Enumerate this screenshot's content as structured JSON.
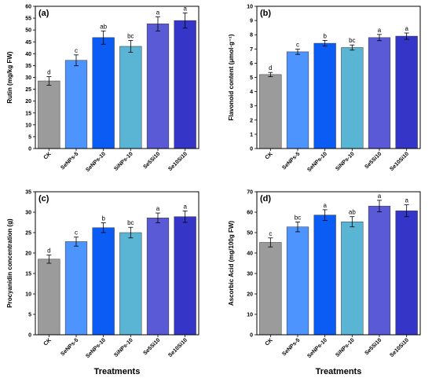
{
  "chart_data": [
    {
      "type": "bar",
      "panel_label": "(a)",
      "categories": [
        "CK",
        "SeNPs-5",
        "SeNPs-10",
        "SiNPs-10",
        "Se5Si10",
        "Se10Si10"
      ],
      "values": [
        28.5,
        37.2,
        46.8,
        43.1,
        52.6,
        54.0
      ],
      "errors": [
        1.8,
        2.3,
        2.8,
        2.5,
        3.0,
        3.2
      ],
      "significance": [
        "d",
        "c",
        "ab",
        "bc",
        "a",
        "a"
      ],
      "colors": [
        "#9b9b9b",
        "#4d94ff",
        "#0a5cf5",
        "#5ab4d4",
        "#5a5ad6",
        "#3535c8"
      ],
      "ylabel": "Rutin (mg/kg FW)",
      "xlabel": "",
      "ylim": [
        0,
        60
      ],
      "yticks": [
        "0",
        "5",
        "10",
        "15",
        "20",
        "25",
        "30",
        "35",
        "40",
        "45",
        "50",
        "55",
        "60"
      ]
    },
    {
      "type": "bar",
      "panel_label": "(b)",
      "categories": [
        "CK",
        "SeNPs-5",
        "SeNPs-10",
        "SiNPs-10",
        "Se5Si10",
        "Se10Si10"
      ],
      "values": [
        5.2,
        6.8,
        7.4,
        7.1,
        7.8,
        7.9
      ],
      "errors": [
        0.15,
        0.18,
        0.2,
        0.18,
        0.22,
        0.22
      ],
      "significance": [
        "d",
        "c",
        "b",
        "bc",
        "a",
        "a"
      ],
      "colors": [
        "#9b9b9b",
        "#4d94ff",
        "#0a5cf5",
        "#5ab4d4",
        "#5a5ad6",
        "#3535c8"
      ],
      "ylabel": "Flavonoid content (μmol·g⁻¹)",
      "xlabel": "",
      "ylim": [
        0,
        10
      ],
      "yticks": [
        "0",
        "1",
        "2",
        "3",
        "4",
        "5",
        "6",
        "7",
        "8",
        "9",
        "10"
      ]
    },
    {
      "type": "bar",
      "panel_label": "(c)",
      "categories": [
        "CK",
        "SeNPs-5",
        "SeNPs-10",
        "SiNPs-10",
        "Se5Si10",
        "Se10Si10"
      ],
      "values": [
        18.5,
        22.8,
        26.2,
        25.0,
        28.6,
        28.9
      ],
      "errors": [
        1.0,
        1.1,
        1.2,
        1.3,
        1.2,
        1.4
      ],
      "significance": [
        "d",
        "c",
        "b",
        "bc",
        "a",
        "a"
      ],
      "colors": [
        "#9b9b9b",
        "#4d94ff",
        "#0a5cf5",
        "#5ab4d4",
        "#5a5ad6",
        "#3535c8"
      ],
      "ylabel": "Procyanidin concentration (g)",
      "xlabel": "Treatments",
      "ylim": [
        0,
        35
      ],
      "yticks": [
        "0",
        "5",
        "10",
        "15",
        "20",
        "25",
        "30",
        "35"
      ]
    },
    {
      "type": "bar",
      "panel_label": "(d)",
      "categories": [
        "CK",
        "SeNPs-5",
        "SeNPs-10",
        "SiNPs-10",
        "Se5Si10",
        "Se10Si10"
      ],
      "values": [
        45.2,
        52.8,
        58.6,
        55.3,
        63.0,
        60.7
      ],
      "errors": [
        2.2,
        2.4,
        2.6,
        2.5,
        2.8,
        2.9
      ],
      "significance": [
        "c",
        "bc",
        "a",
        "ab",
        "a",
        "a"
      ],
      "colors": [
        "#9b9b9b",
        "#4d94ff",
        "#0a5cf5",
        "#5ab4d4",
        "#5a5ad6",
        "#3535c8"
      ],
      "ylabel": "Ascorbic Acid (mg/100g FW)",
      "xlabel": "Treatments",
      "ylim": [
        0,
        70
      ],
      "yticks": [
        "0",
        "10",
        "20",
        "30",
        "40",
        "50",
        "60",
        "70"
      ]
    }
  ]
}
